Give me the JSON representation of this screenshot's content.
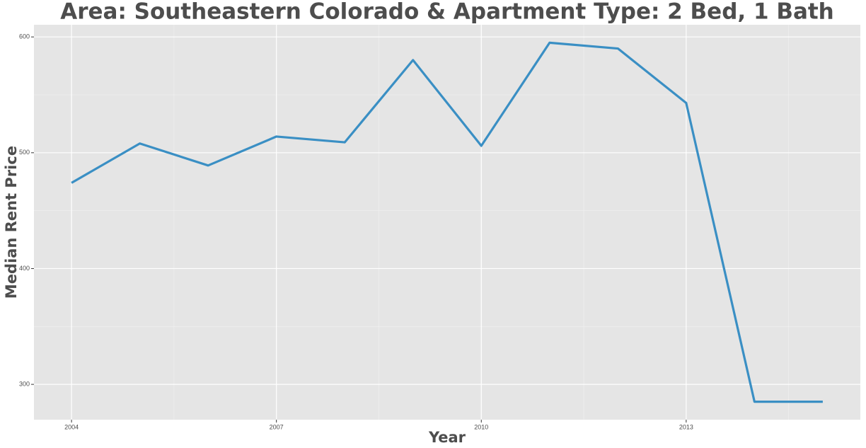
{
  "chart_data": {
    "type": "line",
    "title": "Area: Southeastern Colorado & Apartment Type: 2 Bed, 1 Bath",
    "x_label": "Year",
    "y_label": "Median Rent Price",
    "x": [
      2004,
      2005,
      2006,
      2007,
      2008,
      2009,
      2010,
      2011,
      2012,
      2013,
      2014,
      2015
    ],
    "series": [
      {
        "name": "Median Rent Price",
        "color": "#3a8fc4",
        "values": [
          474,
          508,
          489,
          514,
          509,
          580,
          506,
          595,
          590,
          543,
          285,
          285
        ]
      }
    ],
    "xlim": [
      2003.45,
      2015.55
    ],
    "xticks": [
      2004,
      2007,
      2010,
      2013
    ],
    "x_minor_grid": [
      2005.5,
      2008.5,
      2011.5,
      2014.5
    ],
    "ylim": [
      269.5,
      610.5
    ],
    "yticks": [
      300,
      400,
      500,
      600
    ],
    "y_minor_grid": [
      350,
      450,
      550
    ],
    "grid": true
  }
}
